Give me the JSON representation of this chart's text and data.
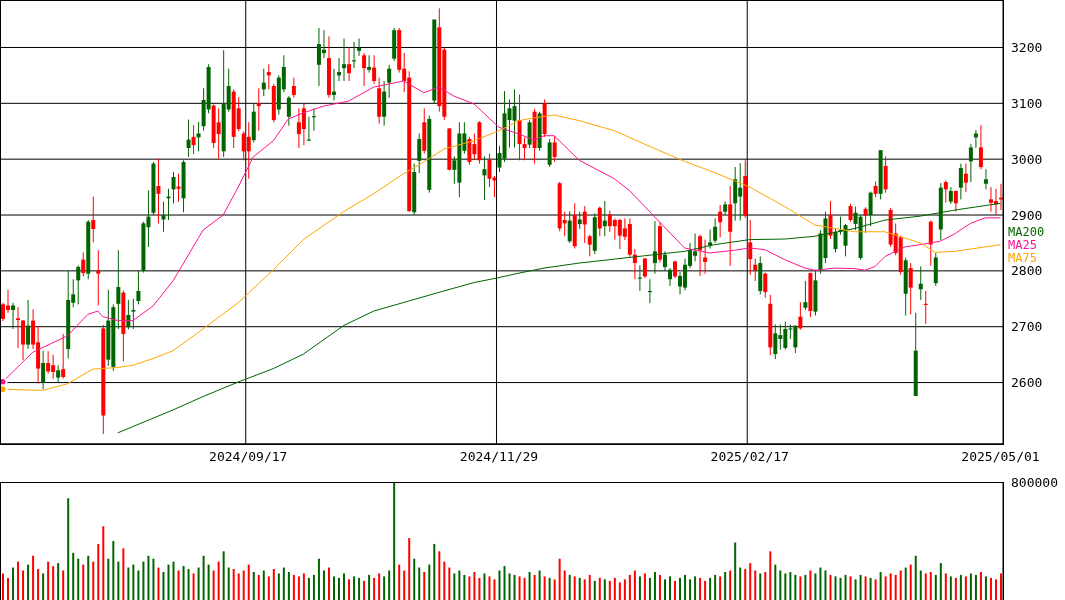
{
  "chart_data": [
    {
      "type": "candlestick",
      "categories": [
        null,
        null,
        null,
        null,
        null,
        null,
        null,
        null,
        null,
        null,
        null,
        null,
        null,
        null,
        null,
        null,
        null,
        null,
        null,
        null,
        null,
        null,
        null,
        null,
        null,
        null,
        null,
        null,
        null,
        null,
        null,
        null,
        null,
        null,
        null,
        null,
        null,
        null,
        null,
        null,
        null,
        null,
        null,
        null,
        null,
        null,
        null,
        null,
        null,
        "2024/09/17",
        null,
        null,
        null,
        null,
        null,
        null,
        null,
        null,
        null,
        null,
        null,
        null,
        null,
        null,
        null,
        null,
        null,
        null,
        null,
        null,
        null,
        null,
        null,
        null,
        null,
        null,
        null,
        null,
        null,
        null,
        null,
        null,
        null,
        null,
        null,
        null,
        null,
        null,
        null,
        null,
        null,
        null,
        null,
        null,
        null,
        null,
        null,
        null,
        null,
        "2024/11/29",
        null,
        null,
        null,
        null,
        null,
        null,
        null,
        null,
        null,
        null,
        null,
        null,
        null,
        null,
        null,
        null,
        null,
        null,
        null,
        null,
        null,
        null,
        null,
        null,
        null,
        null,
        null,
        null,
        null,
        null,
        null,
        null,
        null,
        null,
        null,
        null,
        null,
        null,
        null,
        null,
        null,
        null,
        null,
        null,
        null,
        null,
        null,
        null,
        null,
        "2025/02/17",
        null,
        null,
        null,
        null,
        null,
        null,
        null,
        null,
        null,
        null,
        null,
        null,
        null,
        null,
        null,
        null,
        null,
        null,
        null,
        null,
        null,
        null,
        null,
        null,
        null,
        null,
        null,
        null,
        null,
        null,
        null,
        null,
        null,
        null,
        null,
        null,
        null,
        null,
        null,
        null,
        null,
        null,
        null,
        null,
        null,
        null,
        null,
        null,
        null,
        "2025/05/01"
      ],
      "ohlc": [
        [
          2740,
          2743,
          2710,
          2714
        ],
        [
          2738,
          2766,
          2725,
          2730
        ],
        [
          2730,
          2743,
          2696,
          2738
        ],
        [
          2715,
          2735,
          2662,
          2712
        ],
        [
          2711,
          2712,
          2640,
          2668
        ],
        [
          2668,
          2748,
          2660,
          2702
        ],
        [
          2711,
          2731,
          2660,
          2668
        ],
        [
          2672,
          2701,
          2598,
          2625
        ],
        [
          2600,
          2657,
          2588,
          2635
        ],
        [
          2635,
          2656,
          2616,
          2620
        ],
        [
          2631,
          2650,
          2607,
          2619
        ],
        [
          2609,
          2631,
          2600,
          2622
        ],
        [
          2624,
          2687,
          2607,
          2610
        ],
        [
          2660,
          2800,
          2643,
          2748
        ],
        [
          2743,
          2785,
          2735,
          2758
        ],
        [
          2783,
          2810,
          2740,
          2807
        ],
        [
          2820,
          2833,
          2790,
          2796
        ],
        [
          2795,
          2891,
          2785,
          2888
        ],
        [
          2891,
          2933,
          2851,
          2875
        ],
        [
          2800,
          2837,
          2738,
          2795
        ],
        [
          2697,
          2703,
          2508,
          2541
        ],
        [
          2641,
          2766,
          2630,
          2711
        ],
        [
          2628,
          2740,
          2621,
          2735
        ],
        [
          2741,
          2837,
          2696,
          2771
        ],
        [
          2761,
          2765,
          2638,
          2687
        ],
        [
          2699,
          2748,
          2695,
          2721
        ],
        [
          2727,
          2750,
          2696,
          2730
        ],
        [
          2746,
          2800,
          2740,
          2764
        ],
        [
          2800,
          2888,
          2797,
          2885
        ],
        [
          2878,
          2944,
          2843,
          2897
        ],
        [
          2904,
          2995,
          2900,
          2992
        ],
        [
          2952,
          3001,
          2885,
          2938
        ],
        [
          2892,
          2924,
          2870,
          2900
        ],
        [
          2930,
          2947,
          2891,
          2933
        ],
        [
          2946,
          2977,
          2921,
          2968
        ],
        [
          2951,
          2974,
          2924,
          2947
        ],
        [
          2930,
          2998,
          2905,
          2995
        ],
        [
          3020,
          3071,
          3004,
          3035
        ],
        [
          3040,
          3061,
          3009,
          3025
        ],
        [
          3039,
          3067,
          3014,
          3046
        ],
        [
          3059,
          3127,
          3051,
          3106
        ],
        [
          3089,
          3170,
          3082,
          3165
        ],
        [
          3096,
          3098,
          3020,
          3029
        ],
        [
          3066,
          3091,
          3001,
          3045
        ],
        [
          3014,
          3195,
          3004,
          3100
        ],
        [
          3089,
          3162,
          3085,
          3131
        ],
        [
          3121,
          3125,
          3020,
          3040
        ],
        [
          3091,
          3111,
          3050,
          3054
        ],
        [
          3046,
          3050,
          2998,
          3014
        ],
        [
          3040,
          3066,
          2965,
          3014
        ],
        [
          3034,
          3100,
          3030,
          3085
        ],
        [
          3100,
          3127,
          3051,
          3095
        ],
        [
          3125,
          3162,
          3113,
          3137
        ],
        [
          3156,
          3170,
          3125,
          3150
        ],
        [
          3131,
          3135,
          3066,
          3070
        ],
        [
          3089,
          3150,
          3080,
          3146
        ],
        [
          3125,
          3186,
          3120,
          3165
        ],
        [
          3076,
          3113,
          3060,
          3110
        ],
        [
          3131,
          3146,
          3110,
          3115
        ],
        [
          3066,
          3091,
          3020,
          3045
        ],
        [
          3091,
          3100,
          3025,
          3054
        ],
        [
          3033,
          3076,
          3033,
          3035
        ],
        [
          3075,
          3091,
          3051,
          3077
        ],
        [
          3169,
          3235,
          3131,
          3206
        ],
        [
          3190,
          3231,
          3181,
          3196
        ],
        [
          3181,
          3220,
          3110,
          3115
        ],
        [
          3115,
          3162,
          3105,
          3121
        ],
        [
          3150,
          3181,
          3140,
          3156
        ],
        [
          3163,
          3216,
          3140,
          3170
        ],
        [
          3170,
          3200,
          3140,
          3154
        ],
        [
          3175,
          3210,
          3163,
          3177
        ],
        [
          3194,
          3216,
          3185,
          3199
        ],
        [
          3186,
          3190,
          3131,
          3163
        ],
        [
          3160,
          3186,
          3155,
          3165
        ],
        [
          3164,
          3186,
          3135,
          3140
        ],
        [
          3127,
          3146,
          3064,
          3076
        ],
        [
          3076,
          3140,
          3060,
          3121
        ],
        [
          3137,
          3169,
          3110,
          3162
        ],
        [
          3180,
          3235,
          3176,
          3231
        ],
        [
          3231,
          3235,
          3155,
          3160
        ],
        [
          3162,
          3190,
          3120,
          3140
        ],
        [
          3146,
          3157,
          2906,
          2907
        ],
        [
          2905,
          2992,
          2900,
          2977
        ],
        [
          2997,
          3046,
          2975,
          3036
        ],
        [
          3066,
          3091,
          3010,
          3015
        ],
        [
          2945,
          3078,
          2940,
          3072
        ],
        [
          3105,
          3250,
          3100,
          3250
        ],
        [
          3236,
          3270,
          3085,
          3095
        ],
        [
          3196,
          3200,
          3070,
          3076
        ],
        [
          3055,
          3056,
          2980,
          2981
        ],
        [
          2981,
          3005,
          2956,
          2998
        ],
        [
          2958,
          3066,
          2932,
          3046
        ],
        [
          3015,
          3066,
          3010,
          3046
        ],
        [
          3036,
          3040,
          2990,
          2995
        ],
        [
          3027,
          3046,
          3000,
          3009
        ],
        [
          3066,
          3068,
          2992,
          2998
        ],
        [
          2971,
          3005,
          2927,
          2982
        ],
        [
          2999,
          3010,
          2950,
          2965
        ],
        [
          2967,
          2970,
          2932,
          2962
        ],
        [
          2985,
          3024,
          2977,
          3011
        ],
        [
          3001,
          3122,
          2995,
          3082
        ],
        [
          3070,
          3107,
          3021,
          3091
        ],
        [
          3069,
          3125,
          3021,
          3095
        ],
        [
          3070,
          3116,
          2998,
          3027
        ],
        [
          3027,
          3039,
          2998,
          3020
        ],
        [
          3026,
          3070,
          3020,
          3066
        ],
        [
          3085,
          3090,
          2992,
          3020
        ],
        [
          3020,
          3085,
          3015,
          3082
        ],
        [
          3100,
          3107,
          3040,
          3045
        ],
        [
          2990,
          3036,
          2986,
          3030
        ],
        [
          3030,
          3041,
          2995,
          3004
        ],
        [
          2957,
          2959,
          2871,
          2876
        ],
        [
          2891,
          2906,
          2862,
          2885
        ],
        [
          2853,
          2907,
          2850,
          2890
        ],
        [
          2900,
          2921,
          2840,
          2844
        ],
        [
          2884,
          2906,
          2875,
          2892
        ],
        [
          2906,
          2916,
          2850,
          2883
        ],
        [
          2862,
          2865,
          2826,
          2847
        ],
        [
          2836,
          2903,
          2830,
          2896
        ],
        [
          2913,
          2915,
          2862,
          2876
        ],
        [
          2880,
          2925,
          2862,
          2890
        ],
        [
          2901,
          2908,
          2870,
          2880
        ],
        [
          2891,
          2894,
          2856,
          2880
        ],
        [
          2891,
          2893,
          2839,
          2863
        ],
        [
          2876,
          2894,
          2855,
          2861
        ],
        [
          2884,
          2894,
          2825,
          2829
        ],
        [
          2829,
          2839,
          2785,
          2814
        ],
        [
          2786,
          2810,
          2764,
          2788
        ],
        [
          2822,
          2823,
          2787,
          2790
        ],
        [
          2762,
          2785,
          2742,
          2764
        ],
        [
          2814,
          2889,
          2795,
          2835
        ],
        [
          2880,
          2887,
          2815,
          2820
        ],
        [
          2807,
          2835,
          2800,
          2829
        ],
        [
          2785,
          2805,
          2773,
          2802
        ],
        [
          2817,
          2818,
          2787,
          2790
        ],
        [
          2772,
          2798,
          2758,
          2791
        ],
        [
          2770,
          2822,
          2765,
          2811
        ],
        [
          2809,
          2850,
          2805,
          2837
        ],
        [
          2827,
          2867,
          2817,
          2835
        ],
        [
          2862,
          2865,
          2791,
          2837
        ],
        [
          2824,
          2856,
          2795,
          2816
        ],
        [
          2845,
          2874,
          2840,
          2851
        ],
        [
          2854,
          2894,
          2850,
          2879
        ],
        [
          2906,
          2918,
          2860,
          2887
        ],
        [
          2906,
          2924,
          2900,
          2919
        ],
        [
          2919,
          2952,
          2809,
          2870
        ],
        [
          2921,
          2986,
          2890,
          2964
        ],
        [
          2933,
          2993,
          2890,
          2949
        ],
        [
          2970,
          2998,
          2895,
          2899
        ],
        [
          2851,
          2891,
          2793,
          2821
        ],
        [
          2811,
          2822,
          2782,
          2801
        ],
        [
          2764,
          2826,
          2758,
          2814
        ],
        [
          2795,
          2797,
          2752,
          2762
        ],
        [
          2741,
          2757,
          2649,
          2663
        ],
        [
          2651,
          2704,
          2642,
          2688
        ],
        [
          2678,
          2704,
          2659,
          2685
        ],
        [
          2662,
          2709,
          2659,
          2696
        ],
        [
          2695,
          2704,
          2678,
          2697
        ],
        [
          2663,
          2702,
          2653,
          2702
        ],
        [
          2718,
          2744,
          2695,
          2697
        ],
        [
          2734,
          2782,
          2730,
          2744
        ],
        [
          2796,
          2797,
          2717,
          2728
        ],
        [
          2727,
          2802,
          2720,
          2783
        ],
        [
          2801,
          2873,
          2795,
          2867
        ],
        [
          2823,
          2906,
          2814,
          2894
        ],
        [
          2900,
          2925,
          2857,
          2863
        ],
        [
          2839,
          2876,
          2833,
          2870
        ],
        [
          2870,
          2897,
          2865,
          2873
        ],
        [
          2845,
          2884,
          2826,
          2882
        ],
        [
          2916,
          2920,
          2888,
          2891
        ],
        [
          2884,
          2915,
          2873,
          2904
        ],
        [
          2823,
          2900,
          2820,
          2897
        ],
        [
          2911,
          2914,
          2868,
          2899
        ],
        [
          2900,
          2942,
          2880,
          2940
        ],
        [
          2952,
          2960,
          2932,
          2938
        ],
        [
          2938,
          3016,
          2928,
          3016
        ],
        [
          2988,
          3005,
          2940,
          2946
        ],
        [
          2909,
          2913,
          2843,
          2847
        ],
        [
          2867,
          2885,
          2828,
          2832
        ],
        [
          2860,
          2863,
          2793,
          2798
        ],
        [
          2759,
          2824,
          2720,
          2819
        ],
        [
          2805,
          2814,
          2722,
          2770
        ],
        [
          2576,
          2725,
          2576,
          2657
        ],
        [
          2767,
          2808,
          2748,
          2777
        ],
        [
          2741,
          2764,
          2705,
          2739
        ],
        [
          2888,
          2890,
          2809,
          2847
        ],
        [
          2778,
          2832,
          2773,
          2824
        ],
        [
          2874,
          2957,
          2855,
          2949
        ],
        [
          2959,
          2962,
          2922,
          2946
        ],
        [
          2924,
          2950,
          2920,
          2943
        ],
        [
          2943,
          2944,
          2906,
          2921
        ],
        [
          2949,
          2992,
          2928,
          2984
        ],
        [
          2974,
          2992,
          2941,
          2958
        ],
        [
          2996,
          3027,
          2959,
          3021
        ],
        [
          3039,
          3052,
          3020,
          3046
        ],
        [
          3021,
          3061,
          2982,
          2986
        ],
        [
          2956,
          2982,
          2946,
          2964
        ],
        [
          2928,
          2950,
          2906,
          2922
        ],
        [
          2925,
          2947,
          2900,
          2919
        ],
        [
          2931,
          2956,
          2909,
          2928
        ]
      ],
      "series": [
        {
          "type": "line",
          "name": "MA200",
          "color": "#006400",
          "values": [
            null,
            null,
            null,
            null,
            null,
            null,
            null,
            null,
            null,
            null,
            null,
            null,
            null,
            null,
            null,
            null,
            null,
            null,
            null,
            null,
            null,
            null,
            null,
            2510,
            null,
            null,
            null,
            null,
            null,
            null,
            null,
            null,
            null,
            null,
            2551,
            null,
            null,
            null,
            null,
            null,
            2575,
            null,
            null,
            null,
            null,
            null,
            null,
            2601,
            null,
            null,
            null,
            null,
            null,
            null,
            2625,
            null,
            null,
            null,
            null,
            null,
            2651,
            null,
            null,
            null,
            null,
            null,
            null,
            null,
            2702,
            null,
            null,
            null,
            null,
            null,
            2728,
            null,
            null,
            null,
            null,
            null,
            null,
            2746,
            null,
            null,
            null,
            null,
            null,
            null,
            2764,
            null,
            null,
            null,
            null,
            null,
            2779,
            null,
            null,
            null,
            null,
            2788,
            null,
            null,
            null,
            2796,
            null,
            null,
            null,
            null,
            2805,
            null,
            null,
            null,
            null,
            null,
            null,
            2814,
            null,
            null,
            null,
            null,
            null,
            null,
            2821,
            null,
            null,
            null,
            null,
            null,
            2827,
            null,
            null,
            null,
            null,
            null,
            null,
            null,
            2835,
            null,
            null,
            null,
            null,
            null,
            2847,
            null,
            null,
            null,
            null,
            null,
            null,
            2856,
            null,
            null,
            null,
            null,
            null,
            null,
            2857,
            null,
            null,
            null,
            null,
            null,
            2862,
            null,
            null,
            null,
            null,
            null,
            null,
            null,
            2876,
            null,
            null,
            null,
            null,
            null,
            2891,
            null,
            null,
            null,
            null,
            null,
            null,
            2898,
            null,
            null,
            null,
            null,
            null,
            null,
            2909,
            null,
            null,
            null,
            null,
            null,
            null,
            null,
            null,
            2921
          ]
        },
        {
          "type": "line",
          "name": "MA25",
          "color": "#ff1493",
          "values": [
            2601,
            null,
            null,
            null,
            null,
            null,
            2654,
            null,
            null,
            null,
            null,
            null,
            null,
            2684,
            null,
            null,
            null,
            2722,
            null,
            2728,
            2718,
            null,
            null,
            2711,
            null,
            null,
            2711,
            null,
            null,
            null,
            2737,
            null,
            null,
            null,
            2782,
            null,
            null,
            null,
            null,
            null,
            2873,
            null,
            null,
            null,
            2900,
            null,
            null,
            2950,
            null,
            null,
            3004,
            null,
            null,
            null,
            3033,
            null,
            null,
            3072,
            null,
            null,
            3083,
            null,
            null,
            null,
            3095,
            null,
            null,
            null,
            null,
            3104,
            null,
            null,
            null,
            null,
            3129,
            null,
            null,
            null,
            null,
            null,
            3140,
            null,
            null,
            null,
            3119,
            null,
            null,
            3129,
            null,
            null,
            3113,
            null,
            null,
            null,
            3099,
            null,
            null,
            null,
            null,
            3057,
            null,
            null,
            null,
            3045,
            null,
            null,
            3034,
            null,
            3042,
            null,
            3042,
            null,
            null,
            null,
            null,
            2998,
            null,
            null,
            null,
            null,
            null,
            null,
            2965,
            null,
            null,
            2944,
            null,
            null,
            null,
            null,
            2897,
            null,
            null,
            null,
            null,
            null,
            2841,
            null,
            null,
            null,
            null,
            2832,
            null,
            null,
            null,
            null,
            2837,
            null,
            null,
            2841,
            null,
            null,
            2838,
            null,
            null,
            null,
            2820,
            null,
            null,
            null,
            2805,
            null,
            2801,
            null,
            null,
            null,
            2805,
            null,
            null,
            null,
            2804,
            null,
            2801,
            null,
            2808,
            null,
            2826,
            null,
            null,
            null,
            2843,
            null,
            null,
            2847,
            null,
            null,
            null,
            2853,
            null,
            null,
            2867,
            null,
            null,
            2885,
            null,
            null,
            2895,
            null,
            null,
            2895
          ]
        },
        {
          "type": "line",
          "name": "MA75",
          "color": "#ffa500",
          "values": [
            2588,
            null,
            null,
            null,
            null,
            null,
            null,
            null,
            2586,
            null,
            null,
            null,
            null,
            2598,
            null,
            null,
            null,
            null,
            2624,
            null,
            null,
            null,
            null,
            2627,
            null,
            null,
            2631,
            null,
            null,
            null,
            2643,
            null,
            null,
            null,
            2657,
            null,
            null,
            null,
            null,
            null,
            2696,
            null,
            null,
            null,
            null,
            null,
            null,
            2743,
            null,
            null,
            null,
            null,
            null,
            null,
            2802,
            null,
            null,
            null,
            null,
            null,
            2856,
            null,
            null,
            null,
            null,
            null,
            null,
            null,
            2906,
            null,
            null,
            null,
            null,
            null,
            2938,
            null,
            null,
            null,
            null,
            null,
            2974,
            null,
            null,
            null,
            2995,
            null,
            null,
            null,
            3018,
            null,
            null,
            null,
            null,
            null,
            3033,
            null,
            null,
            null,
            null,
            3051,
            null,
            null,
            null,
            3069,
            null,
            null,
            3074,
            null,
            null,
            null,
            3079,
            null,
            null,
            null,
            null,
            3069,
            null,
            null,
            null,
            null,
            null,
            null,
            3051,
            null,
            null,
            null,
            null,
            null,
            3027,
            null,
            null,
            null,
            null,
            null,
            null,
            null,
            2996,
            null,
            null,
            null,
            null,
            null,
            2976,
            null,
            null,
            null,
            null,
            null,
            null,
            2950,
            null,
            null,
            null,
            null,
            null,
            null,
            2915,
            null,
            null,
            null,
            null,
            null,
            2882,
            null,
            null,
            null,
            null,
            null,
            null,
            null,
            2870,
            null,
            null,
            null,
            null,
            null,
            2870,
            null,
            null,
            null,
            null,
            null,
            null,
            2850,
            null,
            null,
            2833,
            null,
            null,
            null,
            2835,
            null,
            null,
            null,
            null,
            null,
            null,
            null,
            null,
            2847
          ]
        }
      ],
      "ylim": [
        2490,
        3285
      ],
      "yticks": [
        2600,
        2700,
        2800,
        2900,
        3000,
        3100,
        3200
      ],
      "grid": true,
      "legend": "right"
    },
    {
      "type": "bar",
      "categories": [
        null,
        null,
        null,
        null,
        null,
        null,
        null,
        null,
        null,
        null,
        null,
        null,
        null,
        null,
        null,
        null,
        null,
        null,
        null,
        null,
        null,
        null,
        null,
        null,
        null,
        null,
        null,
        null,
        null,
        null,
        null,
        null,
        null,
        null,
        null,
        null,
        null,
        null,
        null,
        null,
        null,
        null,
        null,
        null,
        null,
        null,
        null,
        null,
        null,
        null,
        null,
        null,
        null,
        null,
        null,
        null,
        null,
        null,
        null,
        null,
        null,
        null,
        null,
        null,
        null,
        null,
        null,
        null,
        null,
        null,
        null,
        null,
        null,
        null,
        null,
        null,
        null,
        null,
        null,
        null,
        null,
        null,
        null,
        null,
        null,
        null,
        null,
        null,
        null,
        null,
        null,
        null,
        null,
        null,
        null,
        null,
        null,
        null,
        null,
        null,
        null,
        null,
        null,
        null,
        null,
        null,
        null,
        null,
        null,
        null,
        null,
        null,
        null,
        null,
        null,
        null,
        null,
        null,
        null,
        null,
        null,
        null,
        null,
        null,
        null,
        null,
        null,
        null,
        null,
        null,
        null,
        null,
        null,
        null,
        null,
        null,
        null,
        null,
        null,
        null,
        null,
        null,
        null,
        null,
        null,
        null,
        null,
        null,
        null,
        null,
        null,
        null,
        null,
        null,
        null,
        null,
        null,
        null,
        null,
        null,
        null,
        null,
        null,
        null,
        null,
        null,
        null,
        null,
        null,
        null,
        null,
        null,
        null,
        null,
        null,
        null,
        null,
        null,
        null,
        null,
        null,
        null,
        null,
        null,
        null,
        null,
        null,
        null,
        null,
        null,
        null,
        null,
        null,
        null,
        null,
        null,
        null,
        null,
        null,
        null
      ],
      "values": [
        180000,
        150000,
        220000,
        260000,
        200000,
        240000,
        300000,
        210000,
        180000,
        260000,
        230000,
        250000,
        200000,
        690000,
        320000,
        280000,
        240000,
        300000,
        260000,
        380000,
        500000,
        280000,
        400000,
        260000,
        350000,
        220000,
        240000,
        200000,
        260000,
        300000,
        280000,
        220000,
        190000,
        240000,
        260000,
        200000,
        230000,
        210000,
        180000,
        220000,
        300000,
        240000,
        200000,
        260000,
        330000,
        220000,
        210000,
        180000,
        200000,
        240000,
        190000,
        170000,
        200000,
        160000,
        210000,
        180000,
        220000,
        190000,
        170000,
        160000,
        180000,
        150000,
        170000,
        280000,
        200000,
        220000,
        160000,
        150000,
        180000,
        140000,
        160000,
        150000,
        130000,
        170000,
        150000,
        180000,
        160000,
        200000,
        800000,
        240000,
        200000,
        420000,
        280000,
        220000,
        190000,
        240000,
        380000,
        330000,
        260000,
        220000,
        180000,
        200000,
        170000,
        160000,
        190000,
        150000,
        180000,
        160000,
        140000,
        200000,
        230000,
        180000,
        170000,
        160000,
        150000,
        190000,
        170000,
        200000,
        160000,
        150000,
        140000,
        280000,
        200000,
        170000,
        160000,
        150000,
        140000,
        170000,
        130000,
        150000,
        140000,
        130000,
        150000,
        120000,
        140000,
        170000,
        200000,
        160000,
        180000,
        150000,
        190000,
        170000,
        140000,
        160000,
        130000,
        150000,
        170000,
        140000,
        160000,
        150000,
        130000,
        150000,
        170000,
        160000,
        190000,
        200000,
        390000,
        220000,
        210000,
        250000,
        200000,
        180000,
        190000,
        330000,
        240000,
        200000,
        180000,
        190000,
        170000,
        160000,
        170000,
        200000,
        180000,
        220000,
        200000,
        170000,
        160000,
        150000,
        170000,
        160000,
        140000,
        170000,
        160000,
        150000,
        140000,
        190000,
        160000,
        180000,
        170000,
        200000,
        220000,
        240000,
        300000,
        200000,
        180000,
        190000,
        170000,
        250000,
        180000,
        160000,
        150000,
        170000,
        160000,
        180000,
        170000,
        190000,
        160000,
        150000,
        140000,
        180000
      ],
      "ylim": [
        0,
        800000
      ],
      "yticks": [
        800000
      ],
      "tick_labels": "y"
    }
  ]
}
